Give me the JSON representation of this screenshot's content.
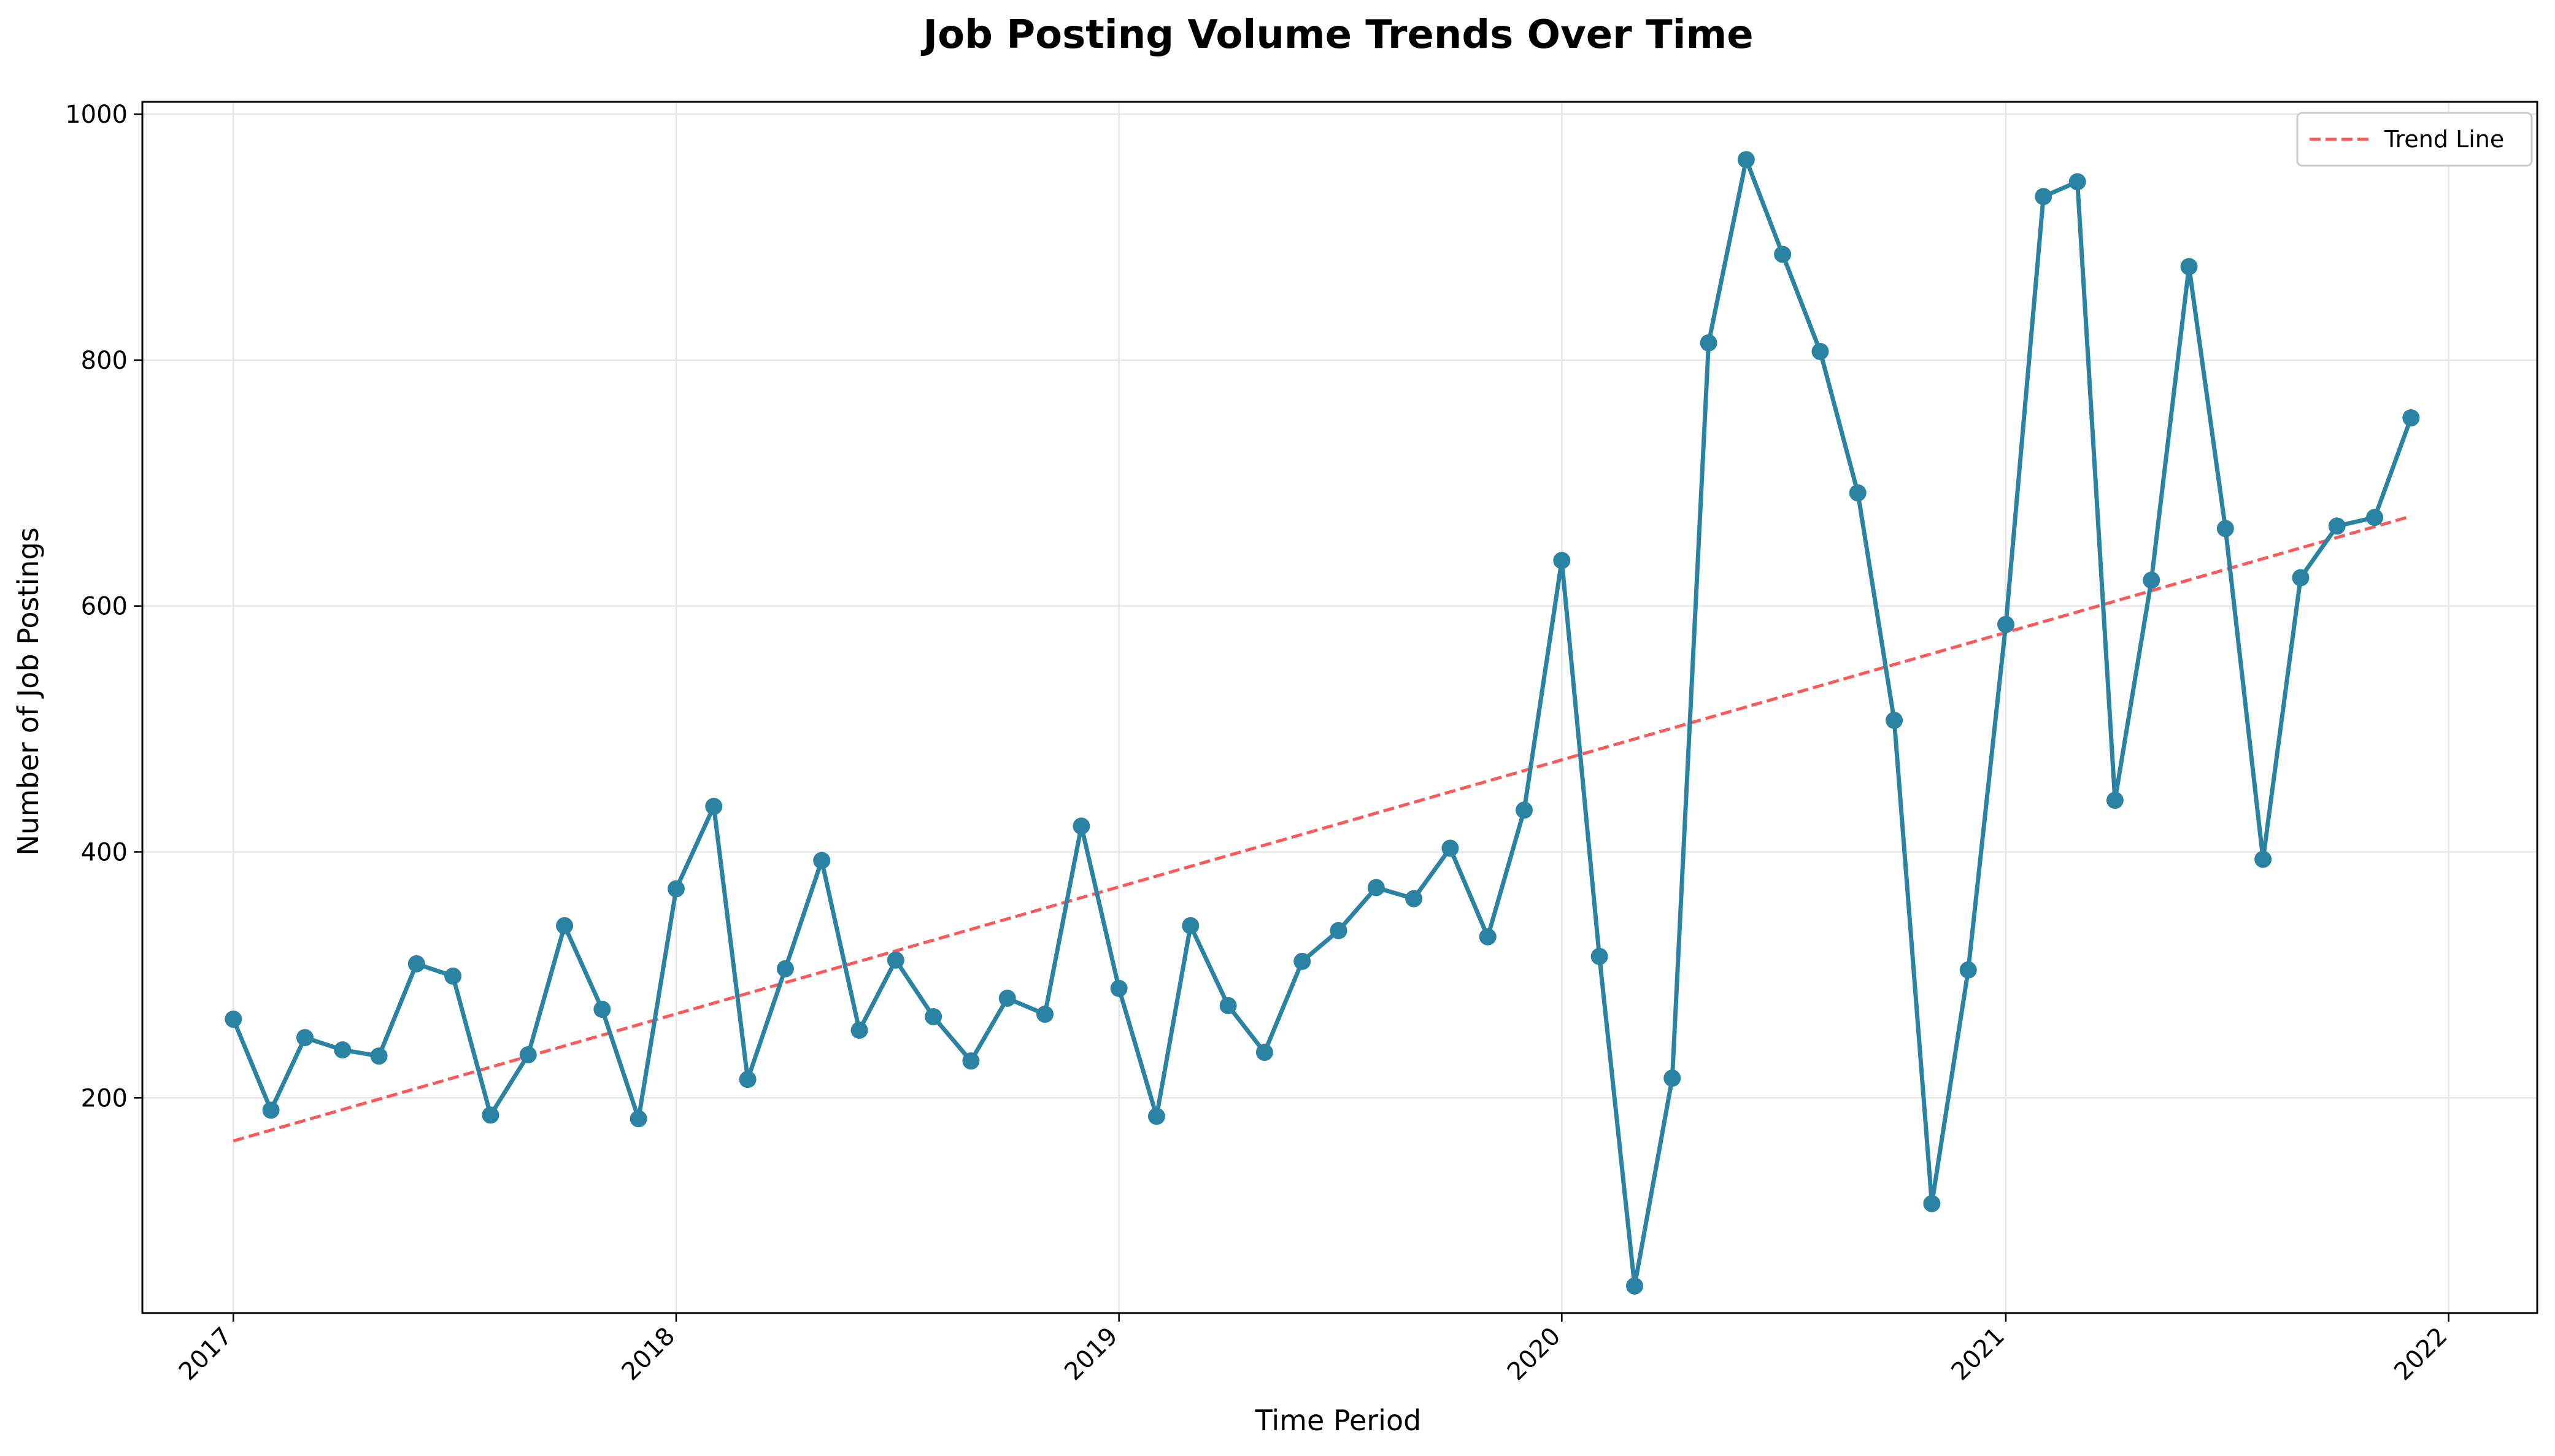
{
  "chart_data": {
    "type": "line",
    "title": "Job Posting Volume Trends Over Time",
    "xlabel": "Time Period",
    "ylabel": "Number of Job Postings",
    "xlim": [
      "2016-10-18",
      "2022-03-15"
    ],
    "ylim": [
      25,
      1010
    ],
    "x_ticks": [
      "2017",
      "2018",
      "2019",
      "2020",
      "2021",
      "2022"
    ],
    "y_ticks": [
      200,
      400,
      600,
      800,
      1000
    ],
    "grid": true,
    "legend": {
      "position": "top-right",
      "entries": [
        "Trend Line"
      ]
    },
    "colors": {
      "series": "#2a83a2",
      "trend": "#ff3b3b",
      "grid": "#e6e6e6"
    },
    "series": [
      {
        "x": [
          "2017-01",
          "2017-02",
          "2017-03",
          "2017-04",
          "2017-05",
          "2017-06",
          "2017-07",
          "2017-08",
          "2017-09",
          "2017-10",
          "2017-11",
          "2017-12",
          "2018-01",
          "2018-02",
          "2018-03",
          "2018-04",
          "2018-05",
          "2018-06",
          "2018-07",
          "2018-08",
          "2018-09",
          "2018-10",
          "2018-11",
          "2018-12",
          "2019-01",
          "2019-02",
          "2019-03",
          "2019-04",
          "2019-05",
          "2019-06",
          "2019-07",
          "2019-08",
          "2019-09",
          "2019-10",
          "2019-11",
          "2019-12",
          "2020-01",
          "2020-02",
          "2020-03",
          "2020-04",
          "2020-05",
          "2020-06",
          "2020-07",
          "2020-08",
          "2020-09",
          "2020-10",
          "2020-11",
          "2020-12",
          "2021-01",
          "2021-02",
          "2021-03",
          "2021-04",
          "2021-05",
          "2021-06",
          "2021-07",
          "2021-08",
          "2021-09",
          "2021-10",
          "2021-11",
          "2021-12"
        ],
        "values": [
          264,
          190,
          249,
          239,
          234,
          309,
          299,
          186,
          235,
          340,
          272,
          183,
          370,
          437,
          215,
          305,
          393,
          255,
          312,
          266,
          230,
          281,
          268,
          421,
          289,
          185,
          340,
          275,
          237,
          311,
          336,
          371,
          362,
          403,
          331,
          434,
          637,
          315,
          47,
          216,
          814,
          963,
          886,
          807,
          692,
          507,
          114,
          304,
          585,
          933,
          945,
          442,
          621,
          876,
          663,
          394,
          623,
          665,
          672,
          753
        ]
      },
      {
        "name": "Trend Line",
        "x": [
          "2017-01",
          "2021-12"
        ],
        "values": [
          165,
          673
        ]
      }
    ]
  }
}
